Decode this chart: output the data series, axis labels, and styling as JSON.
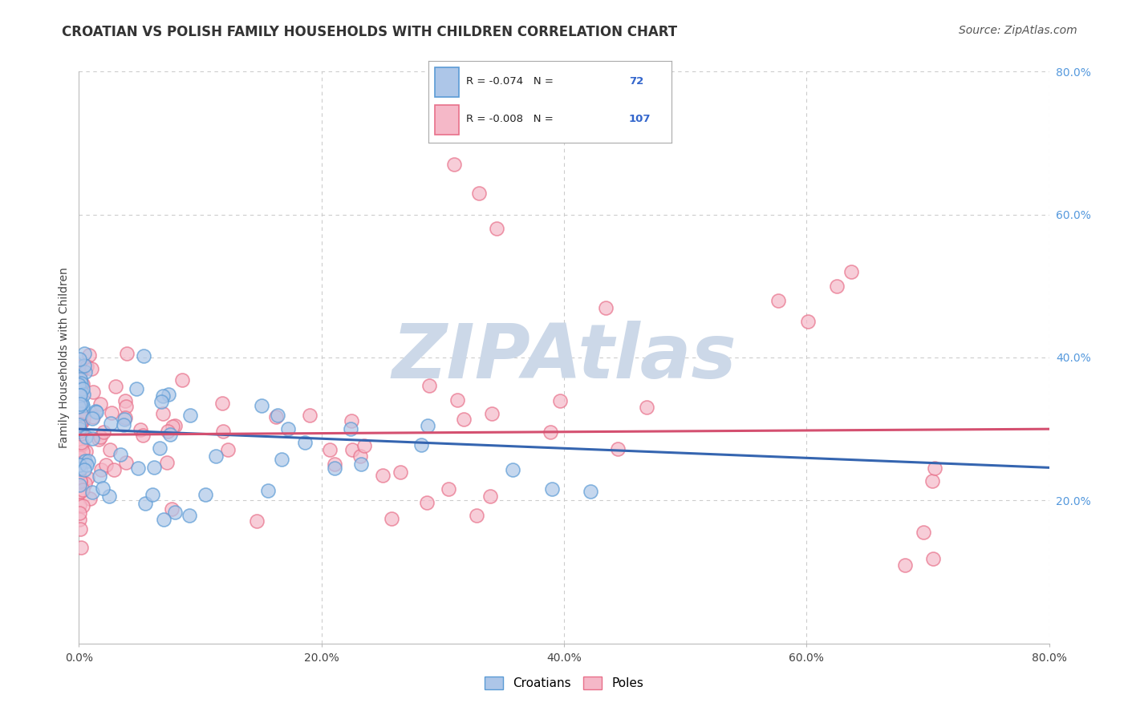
{
  "title": "CROATIAN VS POLISH FAMILY HOUSEHOLDS WITH CHILDREN CORRELATION CHART",
  "source": "Source: ZipAtlas.com",
  "ylabel": "Family Households with Children",
  "legend_croatians": "Croatians",
  "legend_poles": "Poles",
  "R_croatian": -0.074,
  "N_croatian": 72,
  "R_polish": -0.008,
  "N_polish": 107,
  "croatian_color": "#adc6e8",
  "croatian_edge_color": "#5b9bd5",
  "polish_color": "#f5b8c8",
  "polish_edge_color": "#e8708a",
  "croatian_line_color": "#3565b0",
  "polish_line_color": "#d45070",
  "xlim": [
    0.0,
    0.8
  ],
  "ylim": [
    0.0,
    0.8
  ],
  "xticks": [
    0.0,
    0.2,
    0.4,
    0.6,
    0.8
  ],
  "yticks_right": [
    0.2,
    0.4,
    0.6,
    0.8
  ],
  "xticklabels": [
    "0.0%",
    "20.0%",
    "40.0%",
    "60.0%",
    "80.0%"
  ],
  "yticklabels_right": [
    "20.0%",
    "40.0%",
    "60.0%",
    "80.0%"
  ],
  "background_color": "#ffffff",
  "watermark_text": "ZIPAtlas",
  "watermark_color": "#ccd8e8",
  "grid_color": "#cccccc",
  "title_fontsize": 12,
  "axis_label_fontsize": 10,
  "tick_fontsize": 10,
  "source_fontsize": 10,
  "legend_R_color": "#cc2244",
  "legend_N_color": "#3366cc"
}
